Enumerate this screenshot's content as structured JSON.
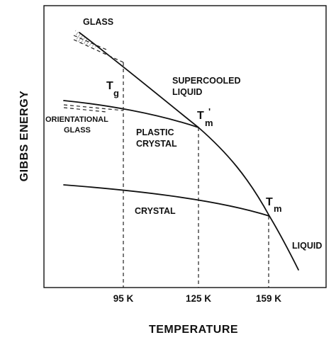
{
  "axes": {
    "x_title": "TEMPERATURE",
    "y_title": "GIBBS ENERGY",
    "x_ticks": [
      "95 K",
      "125 K",
      "159 K"
    ]
  },
  "phases": {
    "glass": "GLASS",
    "supercooled_liquid": [
      "SUPERCOOLED",
      "LIQUID"
    ],
    "orientational_glass": [
      "ORIENTATIONAL",
      "GLASS"
    ],
    "plastic_crystal": [
      "PLASTIC",
      "CRYSTAL"
    ],
    "crystal": "CRYSTAL",
    "liquid": "LIQUID"
  },
  "transitions": {
    "tg": {
      "main": "T",
      "sub": "g"
    },
    "tm_prime": {
      "main": "T",
      "sub": "m",
      "prime": "'"
    },
    "tm": {
      "main": "T",
      "sub": "m"
    }
  }
}
